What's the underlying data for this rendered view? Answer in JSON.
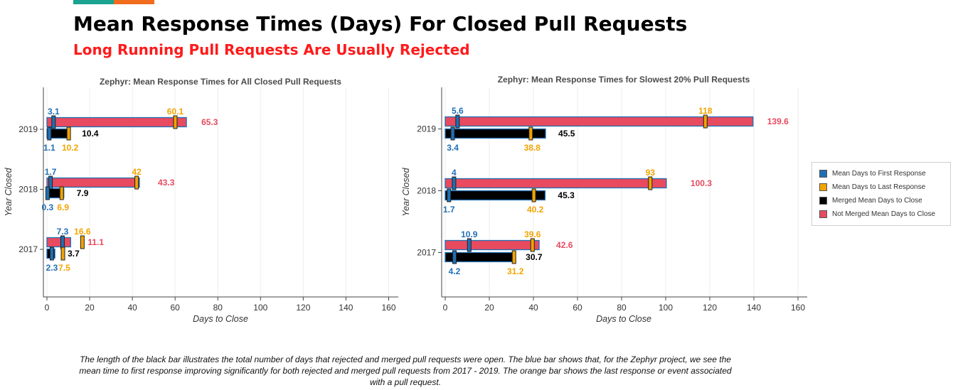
{
  "header": {
    "title": "Mean Response Times (Days) For Closed Pull Requests",
    "subtitle": "Long Running Pull Requests Are Usually Rejected"
  },
  "caption": "The length of the black bar illustrates the total number of days that rejected and merged pull requests were open. The blue bar shows that, for the Zephyr project, we see the mean time to first response improving significantly for both rejected and merged pull requests from 2017 - 2019.   The orange bar shows the last response or event associated with a pull request.",
  "colors": {
    "first_response": "#1f6fb4",
    "last_response": "#f2a400",
    "merged": "#000000",
    "not_merged": "#e84a5f",
    "axis": "#444444",
    "grid": "#eeeeee"
  },
  "legend": {
    "items": [
      {
        "label": "Mean Days to First Response",
        "color": "#1f6fb4"
      },
      {
        "label": "Mean Days to Last Response",
        "color": "#f2a400"
      },
      {
        "label": "Merged Mean Days to Close",
        "color": "#000000"
      },
      {
        "label": "Not Merged Mean Days to Close",
        "color": "#e84a5f"
      }
    ]
  },
  "chart_data": [
    {
      "type": "bar",
      "orientation": "horizontal",
      "title": "Zephyr: Mean Response Times for All Closed Pull Requests",
      "xlabel": "Days to Close",
      "ylabel": "Year Closed",
      "xlim": [
        0,
        160
      ],
      "xticks": [
        0,
        20,
        40,
        60,
        80,
        100,
        120,
        140,
        160
      ],
      "categories": [
        "2019",
        "2018",
        "2017"
      ],
      "grid": true,
      "series": [
        {
          "name": "Not Merged Mean Days to Close",
          "values": [
            65.3,
            43.3,
            11.1
          ],
          "first_response": [
            3.1,
            1.7,
            7.3
          ],
          "last_response": [
            60.1,
            42,
            16.6
          ]
        },
        {
          "name": "Merged Mean Days to Close",
          "values": [
            10.4,
            7.9,
            3.7
          ],
          "first_response": [
            1.1,
            0.3,
            2.3
          ],
          "last_response": [
            10.2,
            6.9,
            7.5
          ]
        }
      ],
      "labels": {
        "2019": {
          "nm": "65.3",
          "nm_first": "3.1",
          "nm_last": "60.1",
          "m": "10.4",
          "m_first": "1.1",
          "m_last": "10.2"
        },
        "2018": {
          "nm": "43.3",
          "nm_first": "1.7",
          "nm_last": "42",
          "m": "7.9",
          "m_first": "0.3",
          "m_last": "6.9"
        },
        "2017": {
          "nm": "11.1",
          "nm_first": "7.3",
          "nm_last": "16.6",
          "m": "3.7",
          "m_first": "2.3",
          "m_last": "7.5"
        }
      }
    },
    {
      "type": "bar",
      "orientation": "horizontal",
      "title": "Zephyr: Mean Response Times for Slowest 20% Pull Requests",
      "xlabel": "Days to Close",
      "ylabel": "Year Closed",
      "xlim": [
        0,
        160
      ],
      "xticks": [
        0,
        20,
        40,
        60,
        80,
        100,
        120,
        140,
        160
      ],
      "categories": [
        "2019",
        "2018",
        "2017"
      ],
      "grid": true,
      "legend_position": "right",
      "series": [
        {
          "name": "Not Merged Mean Days to Close",
          "values": [
            139.6,
            100.3,
            42.6
          ],
          "first_response": [
            5.6,
            4,
            10.9
          ],
          "last_response": [
            118,
            93,
            39.6
          ]
        },
        {
          "name": "Merged Mean Days to Close",
          "values": [
            45.5,
            45.3,
            30.7
          ],
          "first_response": [
            3.4,
            1.7,
            4.2
          ],
          "last_response": [
            38.8,
            40.2,
            31.2
          ]
        }
      ],
      "labels": {
        "2019": {
          "nm": "139.6",
          "nm_first": "5.6",
          "nm_last": "118",
          "m": "45.5",
          "m_first": "3.4",
          "m_last": "38.8"
        },
        "2018": {
          "nm": "100.3",
          "nm_first": "4",
          "nm_last": "93",
          "m": "45.3",
          "m_first": "1.7",
          "m_last": "40.2"
        },
        "2017": {
          "nm": "42.6",
          "nm_first": "10.9",
          "nm_last": "39.6",
          "m": "30.7",
          "m_first": "4.2",
          "m_last": "31.2"
        }
      }
    }
  ]
}
